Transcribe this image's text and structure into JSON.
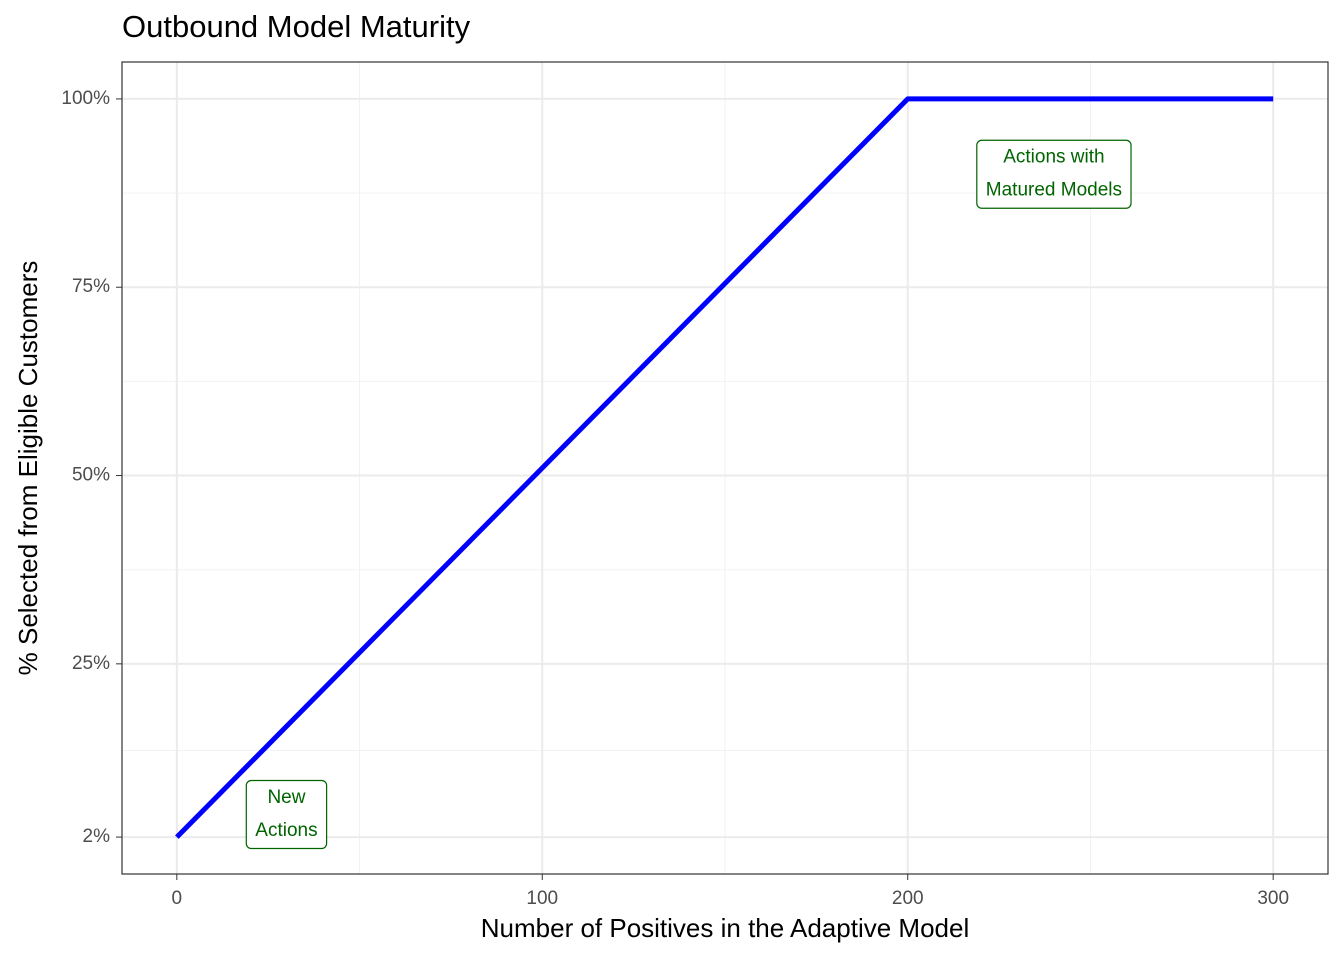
{
  "chart_data": {
    "type": "line",
    "title": "Outbound Model Maturity",
    "x_label": "Number of Positives in the Adaptive Model",
    "y_label": "% Selected from Eligible Customers",
    "x": [
      0,
      200,
      300
    ],
    "series": [
      {
        "color": "#0000ff",
        "values": [
          2,
          100,
          100
        ]
      }
    ],
    "xlim": [
      -15,
      315
    ],
    "ylim": [
      -2.9,
      104.9
    ],
    "xticks": [
      0,
      100,
      200,
      300
    ],
    "yticks": [
      {
        "value": 2,
        "label": "2%"
      },
      {
        "value": 25,
        "label": "25%"
      },
      {
        "value": 50,
        "label": "50%"
      },
      {
        "value": 75,
        "label": "75%"
      },
      {
        "value": 100,
        "label": "100%"
      }
    ],
    "xminor": [
      50,
      150,
      250
    ],
    "yminor": [
      13.5,
      37.5,
      62.5,
      87.5
    ],
    "grid": true,
    "annotations": [
      {
        "lines": [
          "New",
          "Actions"
        ],
        "x": 30,
        "y": 5,
        "color": "#006400"
      },
      {
        "lines": [
          "Actions with",
          "Matured Models"
        ],
        "x": 240,
        "y": 90,
        "color": "#006400"
      }
    ]
  }
}
